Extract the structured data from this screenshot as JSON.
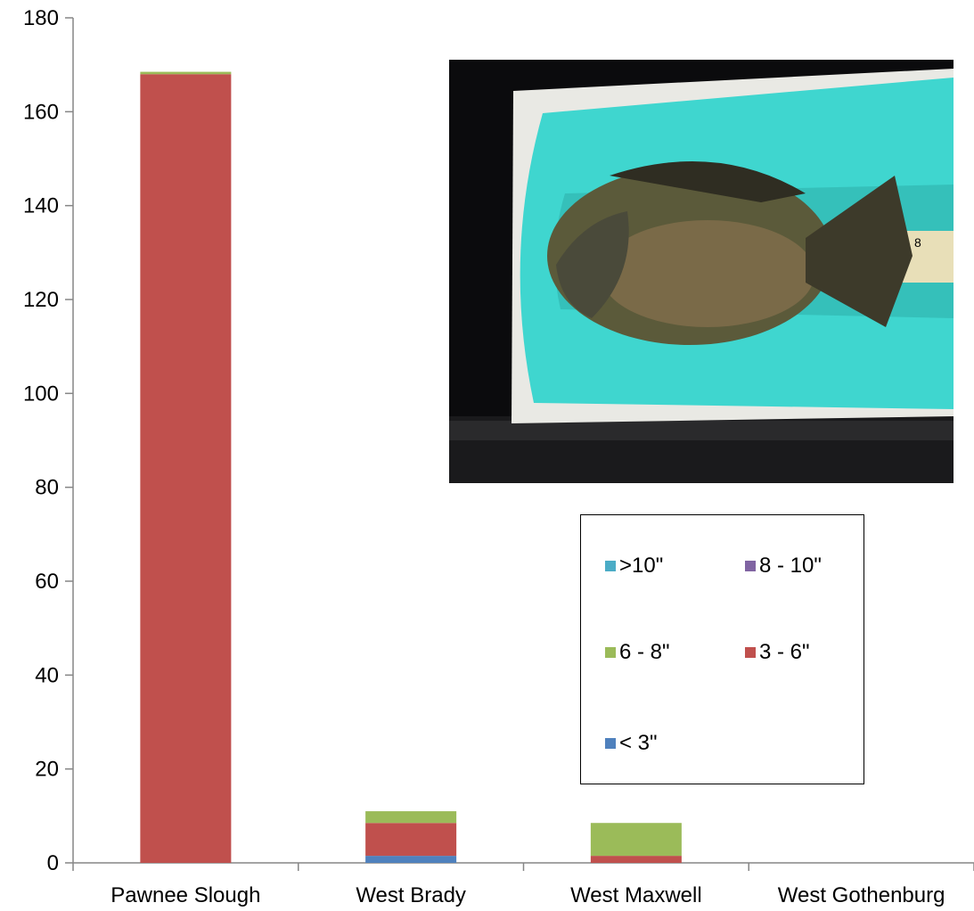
{
  "chart_data": {
    "type": "bar",
    "stacked": true,
    "categories": [
      "Pawnee Slough",
      "West Brady",
      "West Maxwell",
      "West Gothenburg"
    ],
    "series": [
      {
        "name": "< 3\"",
        "color": "#4F81BD",
        "values": [
          0,
          1.5,
          0,
          0
        ]
      },
      {
        "name": "3 - 6\"",
        "color": "#C0504D",
        "values": [
          168,
          7,
          1.5,
          0
        ]
      },
      {
        "name": "6 - 8\"",
        "color": "#9BBB59",
        "values": [
          0.5,
          2.5,
          7,
          0
        ]
      },
      {
        "name": "8 - 10\"",
        "color": "#8064A2",
        "values": [
          0,
          0,
          0,
          0
        ]
      },
      {
        "name": ">10\"",
        "color": "#4BACC6",
        "values": [
          0,
          0,
          0,
          0
        ]
      }
    ],
    "ylim": [
      0,
      180
    ],
    "yticks": [
      0,
      20,
      40,
      60,
      80,
      100,
      120,
      140,
      160,
      180
    ],
    "xlabel": "",
    "ylabel": "",
    "title": "",
    "grid": false,
    "legend_position": "bottom-right inside plot"
  },
  "legend": {
    "items": [
      ">10\"",
      "8 - 10\"",
      "6 - 8\"",
      "3 - 6\"",
      "< 3\""
    ],
    "colors": [
      "#4BACC6",
      "#8064A2",
      "#9BBB59",
      "#C0504D",
      "#4F81BD"
    ]
  },
  "photo": {
    "subject": "bluegill-on-measuring-board"
  }
}
